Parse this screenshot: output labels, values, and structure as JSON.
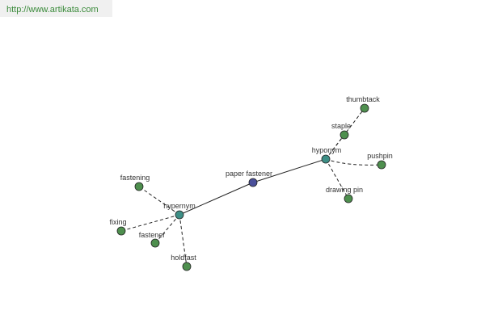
{
  "header": {
    "url": "http://www.artikata.com"
  },
  "nodes": [
    {
      "label": "paper fastener"
    },
    {
      "label": "hypernym"
    },
    {
      "label": "hyponym"
    },
    {
      "label": "fastening"
    },
    {
      "label": "fixing"
    },
    {
      "label": "fastener"
    },
    {
      "label": "holdfast"
    },
    {
      "label": "thumbtack"
    },
    {
      "label": "staple"
    },
    {
      "label": "pushpin"
    },
    {
      "label": "drawing pin"
    }
  ]
}
